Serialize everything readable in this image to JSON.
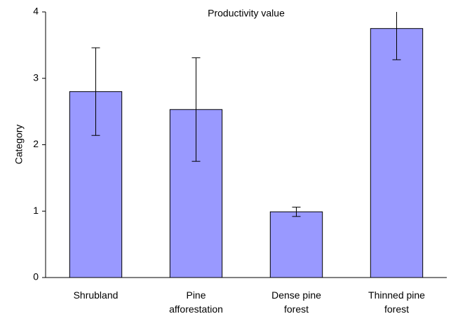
{
  "chart_data": {
    "type": "bar",
    "title": "Productivity value",
    "y_label": "Category",
    "categories": [
      "Shrubland",
      "Pine afforestation",
      "Dense pine forest",
      "Thinned pine forest"
    ],
    "values": [
      2.8,
      2.53,
      0.99,
      3.75
    ],
    "errors": [
      0.66,
      0.78,
      0.07,
      0.47
    ],
    "color": "#9999ff",
    "ylim": [
      0,
      4
    ],
    "yticks": [
      0,
      1,
      2,
      3,
      4
    ],
    "grid": false
  }
}
